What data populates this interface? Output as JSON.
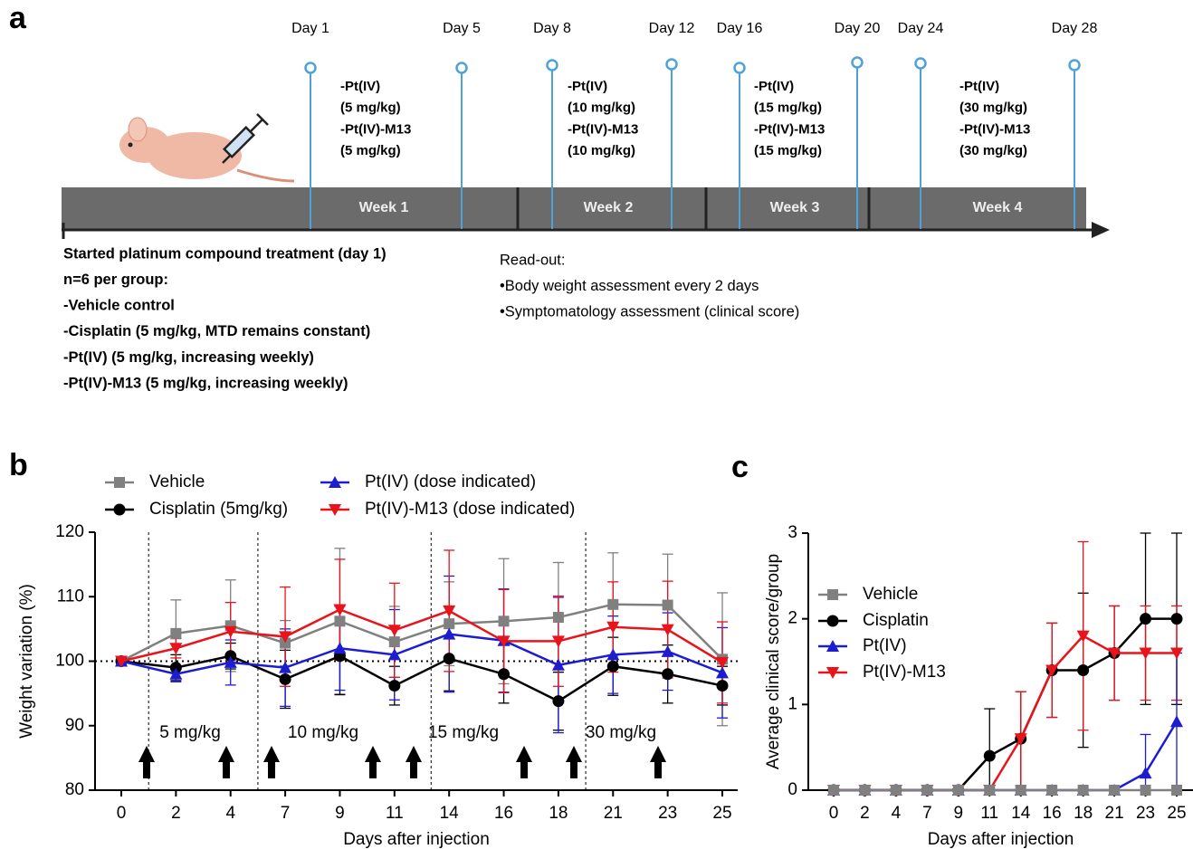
{
  "panel_a": {
    "label": "a",
    "days": [
      "Day 1",
      "Day 5",
      "Day 8",
      "Day 12",
      "Day 16",
      "Day 20",
      "Day 24",
      "Day 28"
    ],
    "doses": [
      [
        "-Pt(IV)",
        "(5 mg/kg)",
        "-Pt(IV)-M13",
        "(5 mg/kg)"
      ],
      [
        "-Pt(IV)",
        "(10 mg/kg)",
        "-Pt(IV)-M13",
        "(10 mg/kg)"
      ],
      [
        "-Pt(IV)",
        "(15 mg/kg)",
        "-Pt(IV)-M13",
        "(15 mg/kg)"
      ],
      [
        "-Pt(IV)",
        "(30 mg/kg)",
        "-Pt(IV)-M13",
        "(30 mg/kg)"
      ]
    ],
    "weeks": [
      "Week 1",
      "Week 2",
      "Week 3",
      "Week 4"
    ],
    "treatment": [
      "Started platinum compound treatment (day 1)",
      "n=6 per group:",
      "-Vehicle control",
      "-Cisplatin (5 mg/kg, MTD remains constant)",
      "-Pt(IV) (5 mg/kg, increasing weekly)",
      "-Pt(IV)-M13 (5 mg/kg, increasing weekly)"
    ],
    "readout": [
      "Read-out:",
      "•Body weight assessment every 2 days",
      "•Symptomatology assessment (clinical score)"
    ]
  },
  "chart_data": [
    {
      "type": "line",
      "label": "b",
      "y_label": "Weight variation (%)",
      "x_label": "Days after injection",
      "categories": [
        "0",
        "2",
        "4",
        "7",
        "9",
        "11",
        "14",
        "16",
        "18",
        "21",
        "23",
        "25"
      ],
      "ylim": [
        80,
        120
      ],
      "yticks": [
        80,
        90,
        100,
        110,
        120
      ],
      "hline": 100,
      "dose_labels": [
        "5 mg/kg",
        "10 mg/kg",
        "15 mg/kg",
        "30 mg/kg"
      ],
      "series": [
        {
          "name": "Vehicle",
          "color": "#808080",
          "marker": "square",
          "values": [
            100,
            104.3,
            105.5,
            102.8,
            106.2,
            103,
            105.8,
            106.2,
            106.8,
            108.8,
            108.7,
            100.3
          ],
          "errors": [
            0,
            5.2,
            7.1,
            3.5,
            11.3,
            5.5,
            6.5,
            9.7,
            8.5,
            8,
            7.9,
            10.3
          ]
        },
        {
          "name": "Cisplatin (5mg/kg)",
          "color": "#000000",
          "marker": "circle",
          "values": [
            100,
            99,
            100.8,
            97.2,
            100.8,
            96.2,
            100.4,
            98,
            93.8,
            99.2,
            98,
            96.2
          ],
          "errors": [
            0,
            2,
            2,
            4.5,
            6,
            3,
            5,
            4.5,
            4.5,
            4.5,
            4.5,
            3
          ]
        },
        {
          "name": "Pt(IV) (dose indicated)",
          "color": "#1c1cd0",
          "marker": "triangle-up",
          "values": [
            100,
            98,
            99.8,
            99,
            102,
            101,
            104.2,
            103.2,
            99.4,
            101,
            101.5,
            98.2
          ],
          "errors": [
            0,
            1.2,
            3.5,
            6,
            6.5,
            7,
            9,
            8,
            10.5,
            6,
            6,
            7
          ]
        },
        {
          "name": "Pt(IV)-M13 (dose indicated)",
          "color": "#e8141c",
          "marker": "triangle-down",
          "values": [
            100,
            102,
            104.6,
            103.8,
            108,
            104.8,
            107.8,
            103.1,
            103.1,
            105.3,
            104.9,
            99.8
          ],
          "errors": [
            0,
            1.5,
            4.5,
            7.7,
            7.8,
            7.3,
            9.4,
            8,
            7,
            7,
            7.5,
            6.3
          ]
        }
      ]
    },
    {
      "type": "line",
      "label": "c",
      "y_label": "Average clinical score/group",
      "x_label": "Days after injection",
      "categories": [
        "0",
        "2",
        "4",
        "7",
        "9",
        "11",
        "14",
        "16",
        "18",
        "21",
        "23",
        "25"
      ],
      "ylim": [
        0,
        3
      ],
      "yticks": [
        0,
        1,
        2,
        3
      ],
      "series": [
        {
          "name": "Cisplatin",
          "color": "#000000",
          "marker": "circle",
          "values": [
            0,
            0,
            0,
            0,
            0,
            0.4,
            0.6,
            1.4,
            1.4,
            1.6,
            2,
            2
          ],
          "errors": [
            0,
            0,
            0,
            0,
            0,
            0.55,
            0.55,
            0.55,
            0.9,
            0.55,
            1,
            1
          ]
        },
        {
          "name": "Pt(IV)-M13",
          "color": "#e8141c",
          "marker": "triangle-down",
          "values": [
            0,
            0,
            0,
            0,
            0,
            0,
            0.6,
            1.4,
            1.8,
            1.6,
            1.6,
            1.6
          ],
          "errors": [
            0,
            0,
            0,
            0,
            0,
            0,
            0.55,
            0.55,
            1.1,
            0.55,
            0.55,
            0.55
          ]
        },
        {
          "name": "Pt(IV)",
          "color": "#1c1cd0",
          "marker": "triangle-up",
          "values": [
            0,
            0,
            0,
            0,
            0,
            0,
            0,
            0,
            0,
            0,
            0.2,
            0.8
          ],
          "errors": [
            0,
            0,
            0,
            0,
            0,
            0,
            0,
            0,
            0,
            0,
            0.45,
            0.8
          ]
        },
        {
          "name": "Vehicle",
          "color": "#808080",
          "marker": "square",
          "values": [
            0,
            0,
            0,
            0,
            0,
            0,
            0,
            0,
            0,
            0,
            0,
            0
          ],
          "errors": [
            0,
            0,
            0,
            0,
            0,
            0,
            0,
            0,
            0,
            0,
            0,
            0
          ]
        }
      ]
    }
  ]
}
